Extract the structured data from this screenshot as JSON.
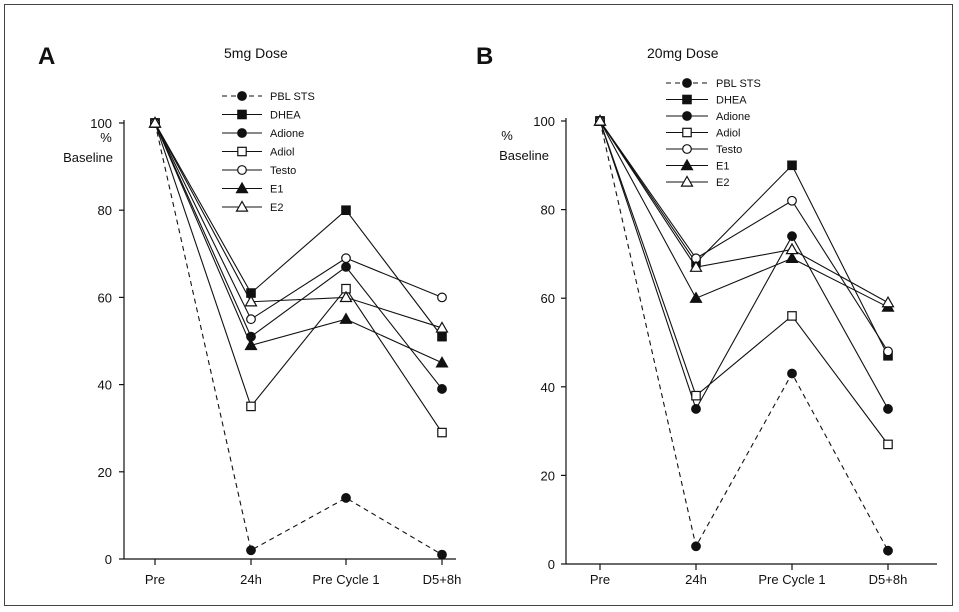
{
  "figure": {
    "panels": [
      {
        "letter": "A",
        "title": "5mg Dose"
      },
      {
        "letter": "B",
        "title": "20mg Dose"
      }
    ]
  },
  "chart_data": [
    {
      "type": "line",
      "title": "5mg Dose",
      "panel": "A",
      "ylabel": [
        "%",
        "Baseline"
      ],
      "xlabel": "",
      "categories": [
        "Pre",
        "24h",
        "Pre Cycle 1",
        "D5+8h"
      ],
      "ylim": [
        0,
        100
      ],
      "yticks": [
        0,
        20,
        40,
        60,
        80,
        100
      ],
      "grid": false,
      "legend": "top-center",
      "series": [
        {
          "name": "PBL STS",
          "marker": "circle-filled",
          "dashed": true,
          "values": [
            100,
            2,
            14,
            1
          ]
        },
        {
          "name": "DHEA",
          "marker": "square-filled",
          "dashed": false,
          "values": [
            100,
            61,
            80,
            51
          ]
        },
        {
          "name": "Adione",
          "marker": "circle-filled",
          "dashed": false,
          "values": [
            100,
            51,
            67,
            39
          ]
        },
        {
          "name": "Adiol",
          "marker": "square-open",
          "dashed": false,
          "values": [
            100,
            35,
            62,
            29
          ]
        },
        {
          "name": "Testo",
          "marker": "circle-open",
          "dashed": false,
          "values": [
            100,
            55,
            69,
            60
          ]
        },
        {
          "name": "E1",
          "marker": "triangle-filled",
          "dashed": false,
          "values": [
            100,
            49,
            55,
            45
          ]
        },
        {
          "name": "E2",
          "marker": "triangle-open",
          "dashed": false,
          "values": [
            100,
            59,
            60,
            53
          ]
        }
      ]
    },
    {
      "type": "line",
      "title": "20mg Dose",
      "panel": "B",
      "ylabel": [
        "%",
        "Baseline"
      ],
      "xlabel": "",
      "categories": [
        "Pre",
        "24h",
        "Pre Cycle 1",
        "D5+8h"
      ],
      "ylim": [
        0,
        100
      ],
      "yticks": [
        0,
        20,
        40,
        60,
        80,
        100
      ],
      "grid": false,
      "legend": "top-center",
      "series": [
        {
          "name": "PBL STS",
          "marker": "circle-filled",
          "dashed": true,
          "values": [
            100,
            4,
            43,
            3
          ]
        },
        {
          "name": "DHEA",
          "marker": "square-filled",
          "dashed": false,
          "values": [
            100,
            68,
            90,
            47
          ]
        },
        {
          "name": "Adione",
          "marker": "circle-filled",
          "dashed": false,
          "values": [
            100,
            35,
            74,
            35
          ]
        },
        {
          "name": "Adiol",
          "marker": "square-open",
          "dashed": false,
          "values": [
            100,
            38,
            56,
            27
          ]
        },
        {
          "name": "Testo",
          "marker": "circle-open",
          "dashed": false,
          "values": [
            100,
            69,
            82,
            48
          ]
        },
        {
          "name": "E1",
          "marker": "triangle-filled",
          "dashed": false,
          "values": [
            100,
            60,
            69,
            58
          ]
        },
        {
          "name": "E2",
          "marker": "triangle-open",
          "dashed": false,
          "values": [
            100,
            67,
            71,
            59
          ]
        }
      ]
    }
  ]
}
